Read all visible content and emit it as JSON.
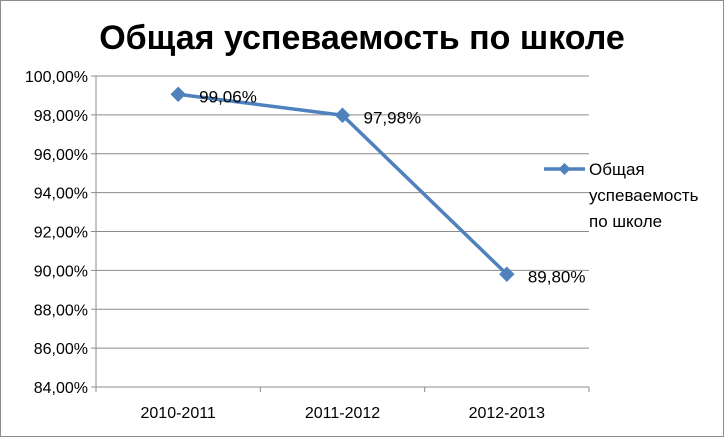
{
  "chart_data": {
    "type": "line",
    "title": "Общая успеваемость по школе",
    "categories": [
      "2010-2011",
      "2011-2012",
      "2012-2013"
    ],
    "series": [
      {
        "name": "Общая успеваемость по школе",
        "values": [
          99.06,
          97.98,
          89.8
        ],
        "data_labels": [
          "99,06%",
          "97,98%",
          "89,80%"
        ],
        "color": "#4f81bd"
      }
    ],
    "ylim": [
      84,
      100
    ],
    "y_ticks": [
      84,
      86,
      88,
      90,
      92,
      94,
      96,
      98,
      100
    ],
    "y_tick_labels": [
      "84,00%",
      "86,00%",
      "88,00%",
      "90,00%",
      "92,00%",
      "94,00%",
      "96,00%",
      "98,00%",
      "100,00%"
    ],
    "grid": true,
    "legend_position": "right",
    "legend_lines": [
      "Общая",
      "успеваемость",
      "по школе"
    ],
    "xlabel": "",
    "ylabel": ""
  }
}
